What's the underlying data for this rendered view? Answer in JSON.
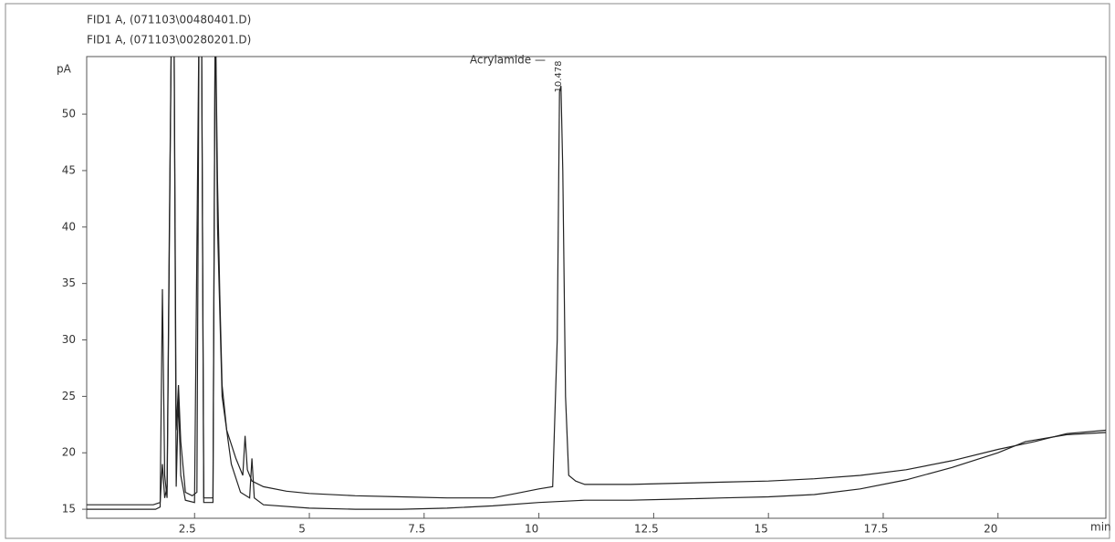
{
  "chart_data": {
    "type": "line",
    "y_label": "pA",
    "x_label": "min",
    "annotation": "Acrylamide —",
    "peak_label": "10.478",
    "xlim": [
      0.15,
      22.35
    ],
    "ylim": [
      14.2,
      55.1
    ],
    "xticks": [
      2.5,
      5,
      7.5,
      10,
      12.5,
      15,
      17.5,
      20
    ],
    "yticks": [
      15,
      20,
      25,
      30,
      35,
      40,
      45,
      50
    ],
    "series": [
      {
        "name": "FID1 A, (071103\\00480401.D)",
        "color": "#222222",
        "x": [
          0.15,
          1.6,
          1.75,
          1.8,
          1.85,
          1.9,
          1.95,
          2.0,
          2.05,
          2.1,
          2.15,
          2.2,
          2.3,
          2.45,
          2.55,
          2.6,
          2.65,
          2.7,
          2.9,
          2.95,
          3.0,
          3.05,
          3.1,
          3.2,
          3.4,
          3.55,
          3.6,
          3.65,
          3.75,
          4.0,
          4.5,
          5,
          6,
          7,
          8,
          9,
          9.5,
          10,
          10.3,
          10.4,
          10.45,
          10.48,
          10.52,
          10.58,
          10.65,
          10.8,
          11,
          12,
          13,
          14,
          15,
          16,
          17,
          18,
          19,
          20,
          20.8,
          21.5,
          22.35
        ],
        "values": [
          15.4,
          15.4,
          15.6,
          19,
          16,
          17,
          40,
          60,
          60,
          22,
          26,
          21,
          16.5,
          16.2,
          16.5,
          60,
          60,
          16,
          16,
          60,
          44,
          34,
          26,
          22,
          19.5,
          18,
          21.5,
          18.5,
          17.5,
          17,
          16.6,
          16.4,
          16.2,
          16.1,
          16,
          16,
          16.4,
          16.8,
          17,
          30,
          52,
          52.5,
          45,
          25,
          18,
          17.5,
          17.2,
          17.2,
          17.3,
          17.4,
          17.5,
          17.7,
          18,
          18.5,
          19.3,
          20.3,
          21,
          21.7,
          22
        ]
      },
      {
        "name": "FID1 A, (071103\\00280201.D)",
        "color": "#222222",
        "x": [
          0.15,
          1.65,
          1.75,
          1.8,
          1.85,
          1.9,
          2.0,
          2.05,
          2.1,
          2.15,
          2.2,
          2.3,
          2.5,
          2.6,
          2.65,
          2.7,
          2.9,
          2.95,
          3.0,
          3.1,
          3.3,
          3.5,
          3.7,
          3.75,
          3.8,
          4,
          5,
          6,
          7,
          8,
          9,
          10,
          11,
          12,
          13,
          14,
          15,
          16,
          17,
          18,
          19,
          20,
          20.6,
          21.5,
          22.35
        ],
        "values": [
          15,
          15,
          15.2,
          34.5,
          18,
          16,
          60,
          60,
          17,
          25,
          18,
          15.8,
          15.6,
          60,
          60,
          15.6,
          15.6,
          60,
          40,
          25,
          19,
          16.5,
          16,
          19.5,
          16,
          15.4,
          15.1,
          15,
          15,
          15.1,
          15.3,
          15.6,
          15.8,
          15.8,
          15.9,
          16,
          16.1,
          16.3,
          16.8,
          17.6,
          18.7,
          20,
          21,
          21.6,
          21.8
        ]
      }
    ]
  }
}
